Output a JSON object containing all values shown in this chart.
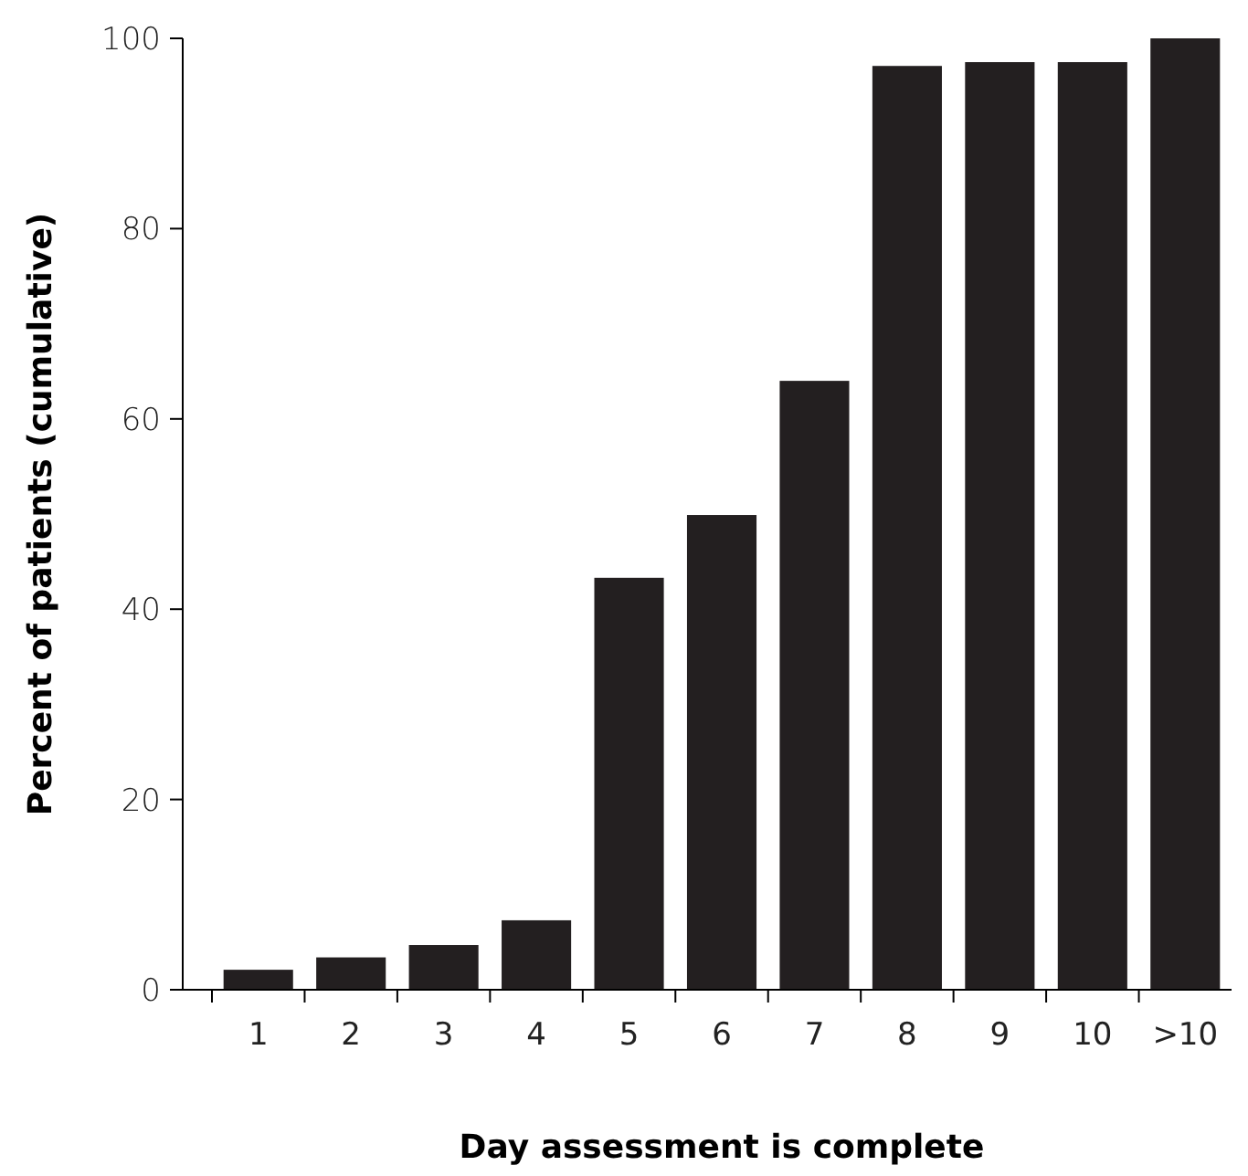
{
  "chart_data": {
    "type": "bar",
    "xlabel": "Day assessment is complete",
    "ylabel": "Percent of patients (cumulative)",
    "categories": [
      "1",
      "2",
      "3",
      "4",
      "5",
      "6",
      "7",
      "8",
      "9",
      "10",
      ">10"
    ],
    "values": [
      2.1,
      3.4,
      4.7,
      7.3,
      43.3,
      49.9,
      64,
      97.1,
      97.5,
      97.5,
      100
    ],
    "color": "#231f20",
    "ylim": [
      0,
      100
    ],
    "yticks": [
      0,
      20,
      40,
      60,
      80,
      100
    ],
    "grid": false
  }
}
